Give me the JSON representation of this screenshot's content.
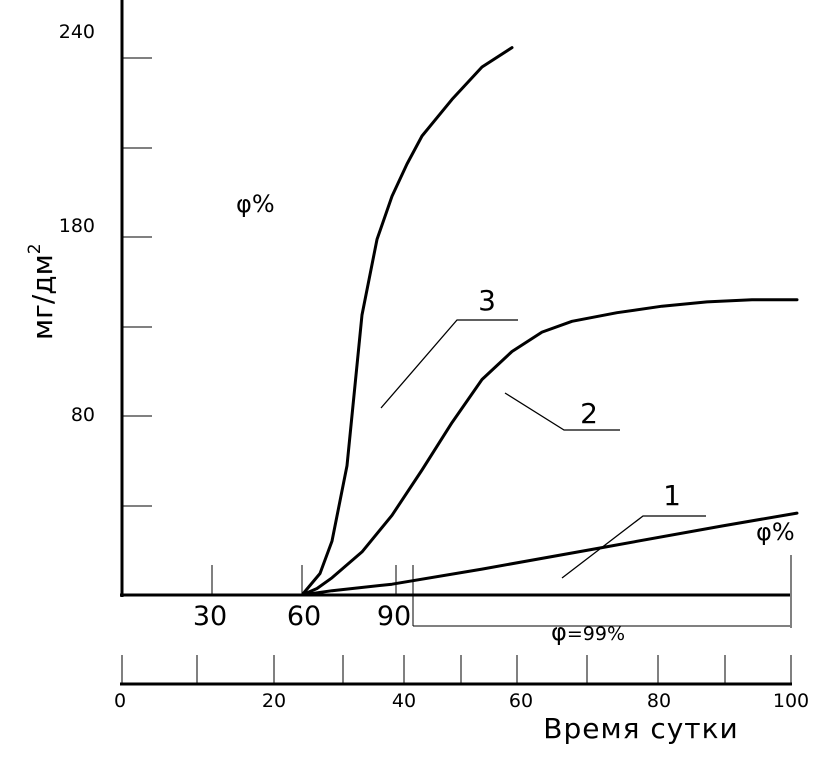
{
  "chart_data": {
    "type": "line",
    "ylabel": "мг/дм",
    "ylabel_sup": "2",
    "y_ticks": [
      "240",
      "180",
      "80"
    ],
    "x_ticks_upper": [
      "30",
      "60",
      "90"
    ],
    "x_ticks_lower": [
      "0",
      "20",
      "40",
      "60",
      "80",
      "100"
    ],
    "xlabel": "Время сутки",
    "annotations": {
      "phi_top": "φ%",
      "phi_right": "φ%",
      "phi_99_sym": "φ",
      "phi_99_rest": "=99%"
    },
    "series": [
      {
        "name": "1",
        "points": [
          [
            0,
            0
          ],
          [
            60,
            0
          ],
          [
            70,
            2
          ],
          [
            90,
            5
          ],
          [
            120,
            12
          ],
          [
            160,
            22
          ],
          [
            200,
            32
          ],
          [
            225,
            38
          ]
        ]
      },
      {
        "name": "2",
        "points": [
          [
            0,
            0
          ],
          [
            60,
            0
          ],
          [
            65,
            3
          ],
          [
            70,
            8
          ],
          [
            80,
            20
          ],
          [
            90,
            37
          ],
          [
            100,
            58
          ],
          [
            110,
            80
          ],
          [
            120,
            100
          ],
          [
            130,
            113
          ],
          [
            140,
            122
          ],
          [
            150,
            127
          ],
          [
            165,
            131
          ],
          [
            180,
            134
          ],
          [
            195,
            136
          ],
          [
            210,
            137
          ],
          [
            225,
            137
          ]
        ]
      },
      {
        "name": "3",
        "points": [
          [
            0,
            0
          ],
          [
            60,
            0
          ],
          [
            66,
            10
          ],
          [
            70,
            25
          ],
          [
            75,
            60
          ],
          [
            80,
            130
          ],
          [
            85,
            165
          ],
          [
            90,
            185
          ],
          [
            95,
            200
          ],
          [
            100,
            213
          ],
          [
            110,
            230
          ],
          [
            120,
            245
          ],
          [
            130,
            254
          ]
        ]
      }
    ]
  }
}
